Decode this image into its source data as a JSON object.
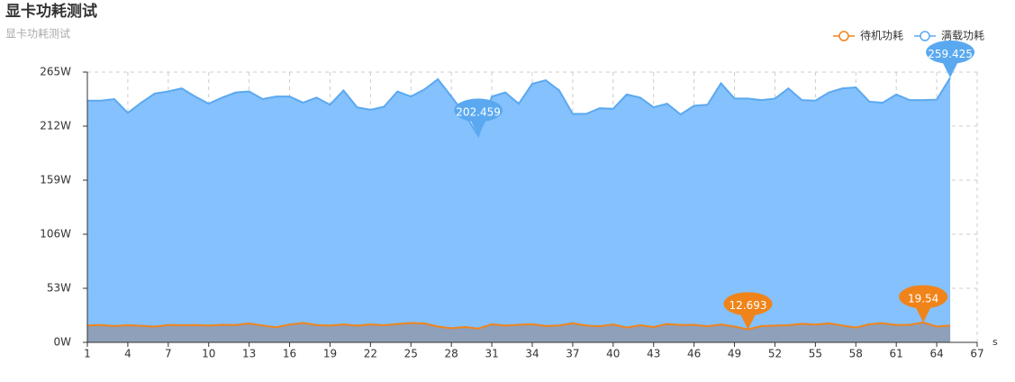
{
  "chart_data": {
    "type": "area",
    "title": "显卡功耗测试",
    "subtitle": "显卡功耗测试",
    "x_axis_name": "s",
    "categories": [
      "1",
      "2",
      "3",
      "4",
      "5",
      "6",
      "7",
      "8",
      "9",
      "10",
      "11",
      "12",
      "13",
      "14",
      "15",
      "16",
      "17",
      "18",
      "19",
      "20",
      "21",
      "22",
      "23",
      "24",
      "25",
      "26",
      "27",
      "28",
      "29",
      "30",
      "31",
      "32",
      "33",
      "34",
      "35",
      "36",
      "37",
      "38",
      "39",
      "40",
      "41",
      "42",
      "43",
      "44",
      "45",
      "46",
      "47",
      "48",
      "49",
      "50",
      "51",
      "52",
      "53",
      "54",
      "55",
      "56",
      "57",
      "58",
      "59",
      "60",
      "61",
      "62",
      "63",
      "64",
      "65",
      "66",
      "67"
    ],
    "ylim": [
      0,
      265
    ],
    "yticks": [
      {
        "value": 0,
        "label": "0W"
      },
      {
        "value": 53,
        "label": "53W"
      },
      {
        "value": 106,
        "label": "106W"
      },
      {
        "value": 159,
        "label": "159W"
      },
      {
        "value": 212,
        "label": "212W"
      },
      {
        "value": 265,
        "label": "265W"
      }
    ],
    "grid": true,
    "legend_position": "top-right",
    "series": [
      {
        "name": "待机功耗",
        "color": "#f0841a",
        "fill": "#8f9cb3",
        "values": [
          16.5,
          17,
          16,
          16.8,
          16.2,
          15.5,
          17,
          16.8,
          17,
          16.4,
          17.2,
          17,
          18.5,
          16.5,
          14.8,
          17.5,
          19,
          17,
          16.5,
          17.6,
          16.4,
          17.5,
          16.8,
          18,
          19,
          18.5,
          15.5,
          13.8,
          15,
          13.5,
          17.8,
          16.5,
          17.2,
          17.8,
          16,
          16.6,
          18.8,
          16.5,
          15.8,
          17.5,
          14.5,
          16.8,
          15,
          18,
          17,
          17.2,
          15.8,
          17.5,
          15.5,
          12.693,
          16,
          16.5,
          16.8,
          18.2,
          17.5,
          18.6,
          16.5,
          14.5,
          17.8,
          18.8,
          17,
          17.2,
          19.54,
          15.5,
          16.5,
          null,
          null
        ]
      },
      {
        "name": "满载功耗",
        "color": "#5aa9f0",
        "fill": "#85c1fd",
        "values": [
          237,
          237,
          238.5,
          225,
          235,
          244,
          246,
          249,
          241,
          234,
          240,
          245,
          246,
          238.5,
          241,
          241,
          235,
          240,
          233,
          247,
          230.5,
          228,
          231,
          246,
          241,
          248,
          258,
          241,
          223.5,
          202.459,
          241,
          245,
          234,
          253.5,
          257,
          247,
          224,
          224,
          229.5,
          229,
          243,
          240,
          230.5,
          234,
          223.5,
          232,
          233,
          254,
          239,
          239,
          237.5,
          239,
          249,
          237.5,
          237,
          245,
          249,
          250,
          236,
          235,
          243,
          237.5,
          237.5,
          238,
          259.425,
          null,
          null
        ]
      }
    ],
    "mark_points": [
      {
        "series": 0,
        "index": 49
      },
      {
        "series": 0,
        "index": 62
      },
      {
        "series": 1,
        "index": 29
      },
      {
        "series": 1,
        "index": 64
      }
    ]
  }
}
